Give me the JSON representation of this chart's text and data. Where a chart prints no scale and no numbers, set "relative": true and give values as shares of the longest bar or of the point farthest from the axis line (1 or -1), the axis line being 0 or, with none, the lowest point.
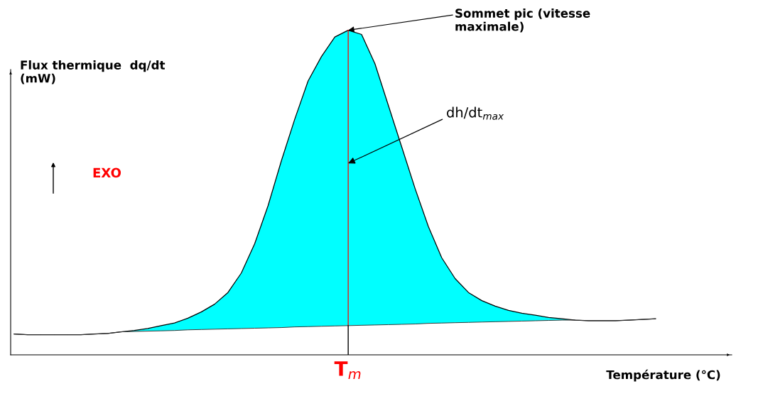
{
  "chart_data": {
    "type": "area",
    "relative": true,
    "xlabel": "Température (°C)",
    "ylabel": "Flux thermique  dq/dt\n(mW)",
    "categories": [
      null,
      null,
      null,
      null,
      null,
      null,
      null,
      null,
      null,
      null,
      null,
      null,
      null,
      null,
      null,
      null,
      null,
      null,
      null,
      null,
      null,
      null,
      null,
      null,
      null,
      null,
      null,
      null,
      null,
      null,
      null,
      null,
      null,
      null,
      null,
      null,
      null,
      null,
      null,
      null,
      null,
      null,
      null,
      null,
      null,
      null,
      null,
      null,
      null
    ],
    "series": [
      {
        "color": "#00ffff",
        "values": [
          0.064,
          0.062,
          0.062,
          0.062,
          0.062,
          0.062,
          0.064,
          0.066,
          0.071,
          0.075,
          0.081,
          0.09,
          0.098,
          0.113,
          0.132,
          0.156,
          0.192,
          0.252,
          0.342,
          0.459,
          0.598,
          0.726,
          0.844,
          0.919,
          0.979,
          1,
          0.987,
          0.897,
          0.769,
          0.641,
          0.513,
          0.395,
          0.299,
          0.235,
          0.192,
          0.167,
          0.15,
          0.137,
          0.128,
          0.122,
          0.115,
          0.111,
          0.107,
          0.105,
          0.105,
          0.105,
          0.107,
          0.109,
          0.111
        ]
      },
      {
        "type": "line",
        "color": "#333333",
        "values": [
          0.064,
          0.062,
          0.062,
          0.062,
          0.062,
          0.062,
          0.064,
          0.066,
          0.071,
          0.072,
          0.073,
          0.074,
          0.075,
          0.077,
          0.078,
          0.079,
          0.08,
          0.081,
          0.082,
          0.083,
          0.084,
          0.086,
          0.087,
          0.088,
          0.089,
          0.09,
          0.091,
          0.092,
          0.093,
          0.094,
          0.095,
          0.097,
          0.098,
          0.099,
          0.1,
          0.101,
          0.102,
          0.103,
          0.104,
          0.105,
          0.106,
          0.107,
          0.107,
          0.105,
          0.105,
          0.105,
          0.107,
          0.109,
          0.111
        ]
      }
    ],
    "annotations": [
      "Sommet pic (vitesse\nmaximale)",
      "dh/dt$_{max}$",
      "EXO",
      "T$_{m}$"
    ],
    "grid": false
  }
}
